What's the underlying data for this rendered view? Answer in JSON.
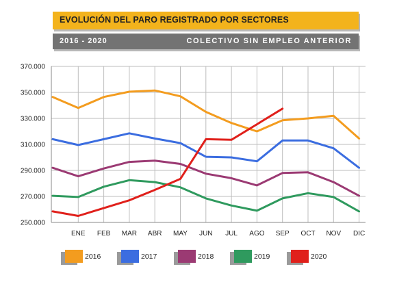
{
  "header": {
    "title": "EVOLUCIÓN DEL PARO REGISTRADO POR SECTORES",
    "period": "2016 - 2020",
    "collective": "COLECTIVO SIN EMPLEO ANTERIOR"
  },
  "chart_data": {
    "type": "line",
    "categories": [
      "ENE",
      "FEB",
      "MAR",
      "ABR",
      "MAY",
      "JUN",
      "JUL",
      "AGO",
      "SEP",
      "OCT",
      "NOV",
      "DIC"
    ],
    "ylim": [
      250000,
      370000
    ],
    "yticks": [
      250000,
      270000,
      290000,
      310000,
      330000,
      350000,
      370000
    ],
    "ytick_labels": [
      "250.000",
      "270.000",
      "290.000",
      "310.000",
      "330.000",
      "350.000",
      "370.000"
    ],
    "grid": true,
    "legend_position": "bottom",
    "start_value": {
      "2016": 346500,
      "2017": 314000,
      "2018": 292000,
      "2019": 270500,
      "2020": 258500
    },
    "series": [
      {
        "name": "2016",
        "color": "#f39c1f",
        "values": [
          338000,
          346500,
          350500,
          351500,
          347000,
          335000,
          326500,
          320000,
          328500,
          330000,
          332000,
          314500
        ]
      },
      {
        "name": "2017",
        "color": "#3b6de0",
        "values": [
          309500,
          314000,
          318500,
          314500,
          311000,
          300500,
          300000,
          297000,
          313000,
          313000,
          307000,
          292000
        ]
      },
      {
        "name": "2018",
        "color": "#9b3a73",
        "values": [
          285500,
          291500,
          296500,
          297500,
          295000,
          287500,
          284000,
          278500,
          288000,
          288500,
          281000,
          270500
        ]
      },
      {
        "name": "2019",
        "color": "#2f9a5e",
        "values": [
          269500,
          277500,
          282500,
          281000,
          277000,
          268500,
          263000,
          259000,
          268500,
          272500,
          269500,
          258500
        ]
      },
      {
        "name": "2020",
        "color": "#e0201b",
        "values": [
          255000,
          261000,
          267000,
          275000,
          283500,
          314000,
          313500,
          325500,
          337500,
          null,
          null,
          null
        ]
      }
    ]
  }
}
